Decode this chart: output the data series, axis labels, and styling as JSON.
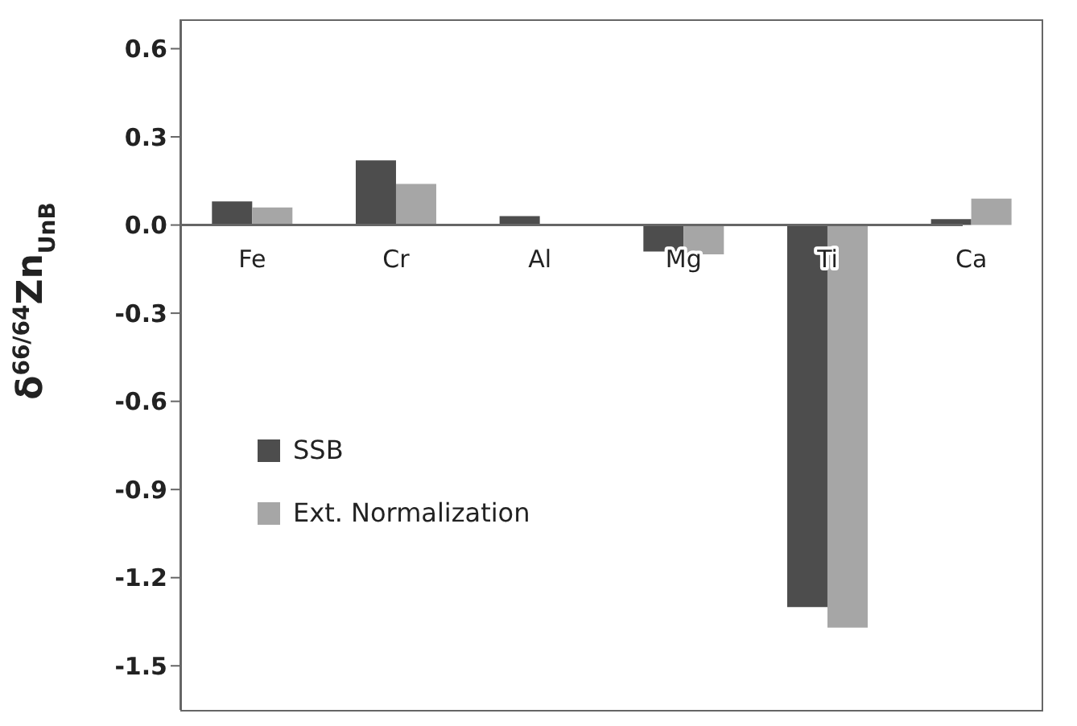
{
  "chart_data": {
    "type": "bar",
    "ylabel": "δ$^{66/64}$Zn$_{UnB}$",
    "categories": [
      "Fe",
      "Cr",
      "Al",
      "Mg",
      "Ti",
      "Ca"
    ],
    "series": [
      {
        "name": "SSB",
        "color": "#4d4d4d",
        "values": [
          0.08,
          0.22,
          0.03,
          -0.09,
          -1.3,
          0.02
        ]
      },
      {
        "name": "Ext. Normalization",
        "color": "#a6a6a6",
        "values": [
          0.06,
          0.14,
          0,
          -0.1,
          -1.37,
          0.09
        ]
      }
    ],
    "ylim": [
      -1.65,
      0.7
    ],
    "yticks": [
      {
        "value": 0.6,
        "label": "0.6"
      },
      {
        "value": 0.3,
        "label": "0.3"
      },
      {
        "value": 0,
        "label": "0.0"
      },
      {
        "value": -0.3,
        "label": "-0.3"
      },
      {
        "value": -0.6,
        "label": "-0.6"
      },
      {
        "value": -0.9,
        "label": "-0.9"
      },
      {
        "value": -1.2,
        "label": "-1.2"
      },
      {
        "value": -1.5,
        "label": "-1.5"
      }
    ],
    "grid": false,
    "legend": "left"
  }
}
